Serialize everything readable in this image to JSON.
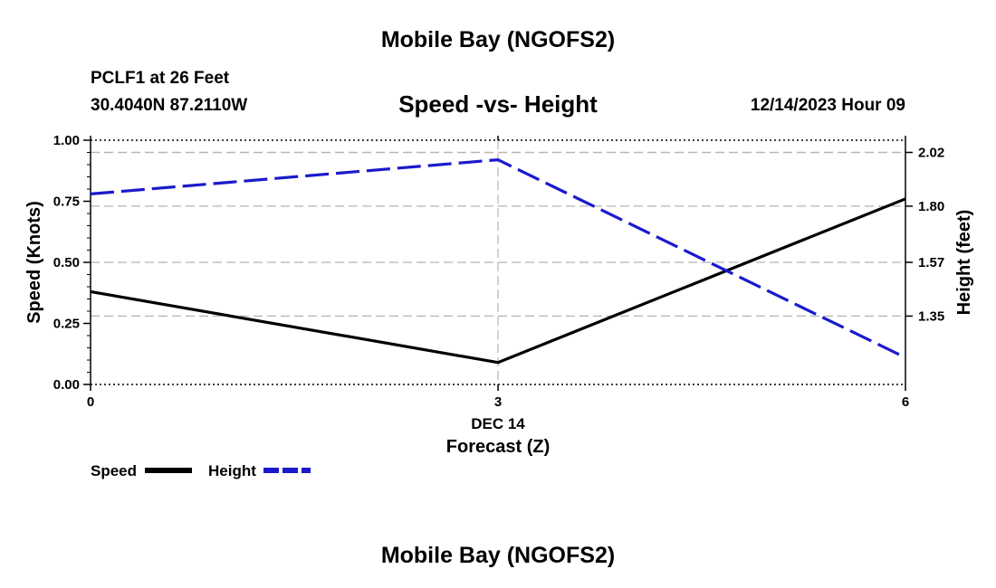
{
  "header": {
    "title_top": "Mobile Bay (NGOFS2)",
    "station": "PCLF1 at 26 Feet",
    "coords": "30.4040N  87.2110W",
    "subtitle": "Speed -vs- Height",
    "datetime": "12/14/2023 Hour 09"
  },
  "footer": {
    "title_bottom": "Mobile Bay (NGOFS2)"
  },
  "colors": {
    "speed": "#000000",
    "height": "#1a1acc",
    "grid": "#b4b4b4"
  },
  "chart_data": {
    "type": "line",
    "title": "Speed -vs- Height",
    "xlabel": "Forecast (Z)",
    "x_date_label": "DEC 14",
    "ylabel": "Speed (Knots)",
    "y2label": "Height (feet)",
    "x": [
      0,
      3,
      6
    ],
    "xlim": [
      0,
      6
    ],
    "x_ticks": [
      0,
      3,
      6
    ],
    "ylim": [
      0,
      1
    ],
    "y_ticks": [
      0,
      0.25,
      0.5,
      0.75,
      1
    ],
    "y_tick_labels": [
      "0.00",
      "0.25",
      "0.50",
      "0.75",
      "1.00"
    ],
    "y2lim": [
      1.07,
      2.07
    ],
    "y2_ticks": [
      1.35,
      1.57,
      1.8,
      2.02
    ],
    "y2_tick_labels": [
      "1.35",
      "1.57",
      "1.80",
      "2.02"
    ],
    "grid": true,
    "legend_position": "bottom-left",
    "series": [
      {
        "name": "Speed",
        "axis": "left",
        "style": "solid",
        "values": [
          0.38,
          0.09,
          0.76
        ]
      },
      {
        "name": "Height",
        "axis": "right",
        "style": "dashed",
        "values": [
          1.85,
          1.99,
          1.18
        ]
      }
    ]
  }
}
